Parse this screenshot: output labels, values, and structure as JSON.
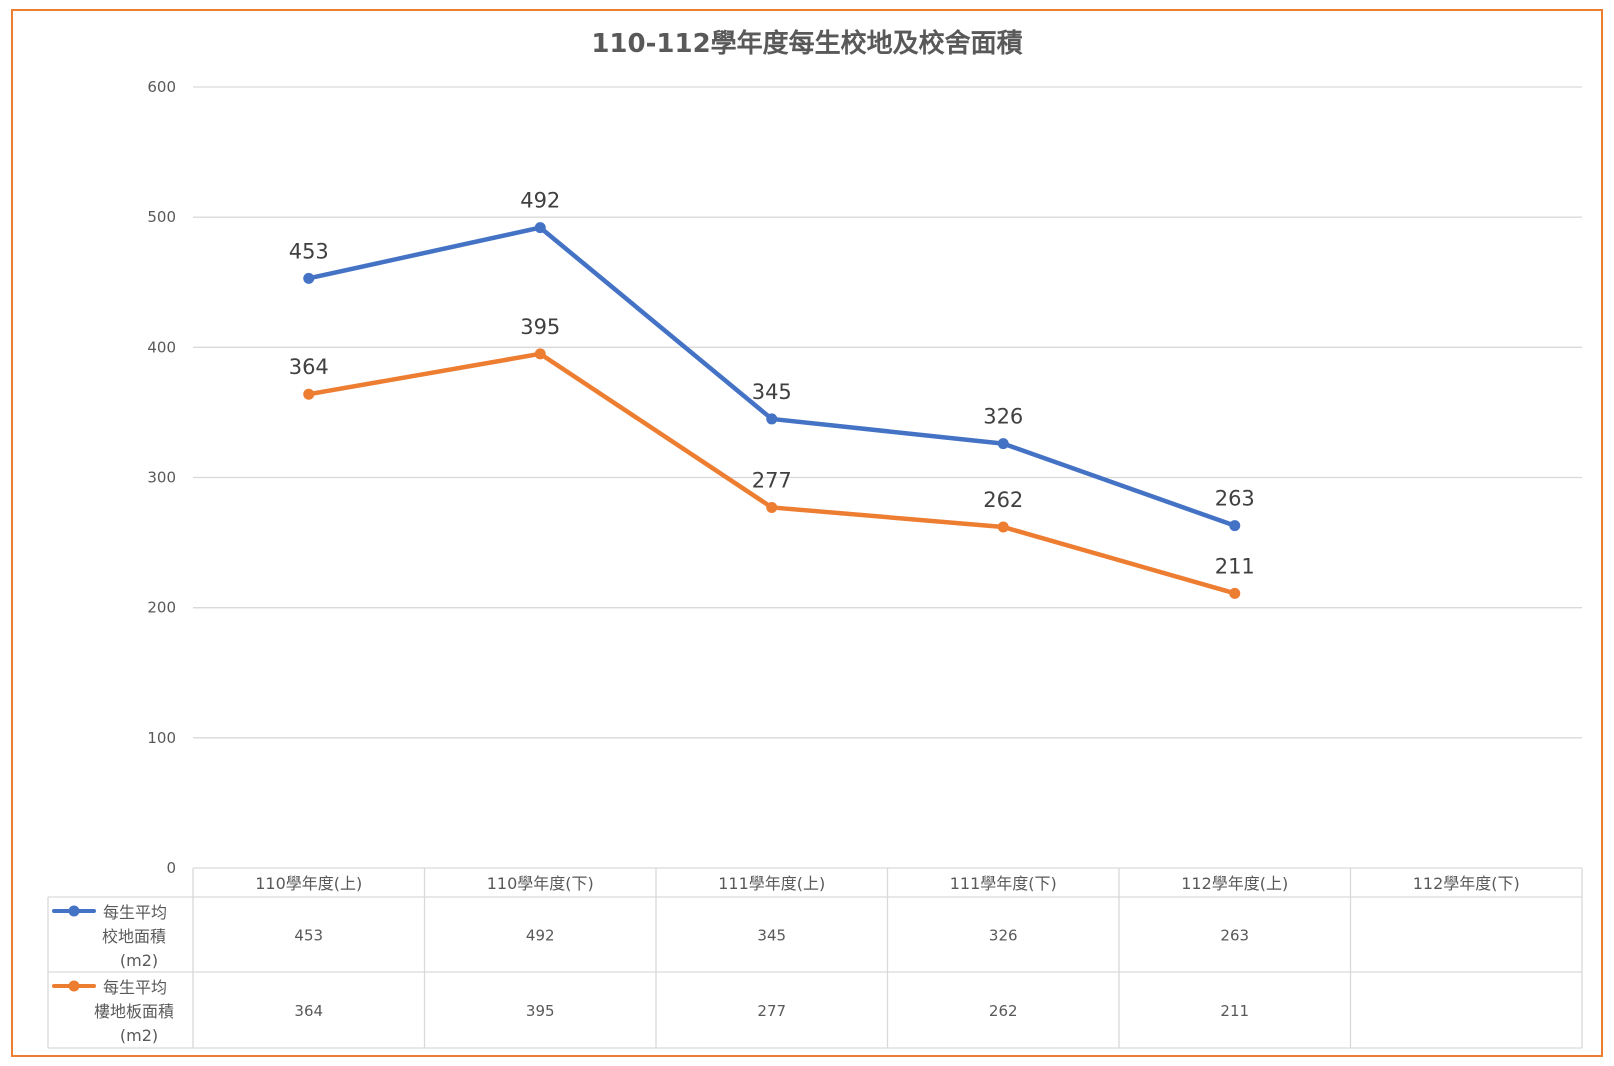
{
  "chart_data": {
    "type": "line",
    "title": "110-112學年度每生校地及校舍面積",
    "categories": [
      "110學年度(上)",
      "110學年度(下)",
      "111學年度(上)",
      "111學年度(下)",
      "112學年度(上)",
      "112學年度(下)"
    ],
    "ylim": [
      0,
      600
    ],
    "yticks": [
      "0",
      "100",
      "200",
      "300",
      "400",
      "500",
      "600"
    ],
    "grid": true,
    "legend": "data-table",
    "series": [
      {
        "name_lines": [
          "每生平均",
          "校地面積",
          "(m2)"
        ],
        "color": "#4472C4",
        "values": [
          453,
          492,
          345,
          326,
          263,
          null
        ],
        "labels": [
          "453",
          "492",
          "345",
          "326",
          "263",
          ""
        ]
      },
      {
        "name_lines": [
          "每生平均",
          "樓地板面積",
          "(m2)"
        ],
        "color": "#ED7D31",
        "values": [
          364,
          395,
          277,
          262,
          211,
          null
        ],
        "labels": [
          "364",
          "395",
          "277",
          "262",
          "211",
          ""
        ]
      }
    ]
  },
  "frame_color": "#ED7D31",
  "grid_color": "#D9D9D9"
}
